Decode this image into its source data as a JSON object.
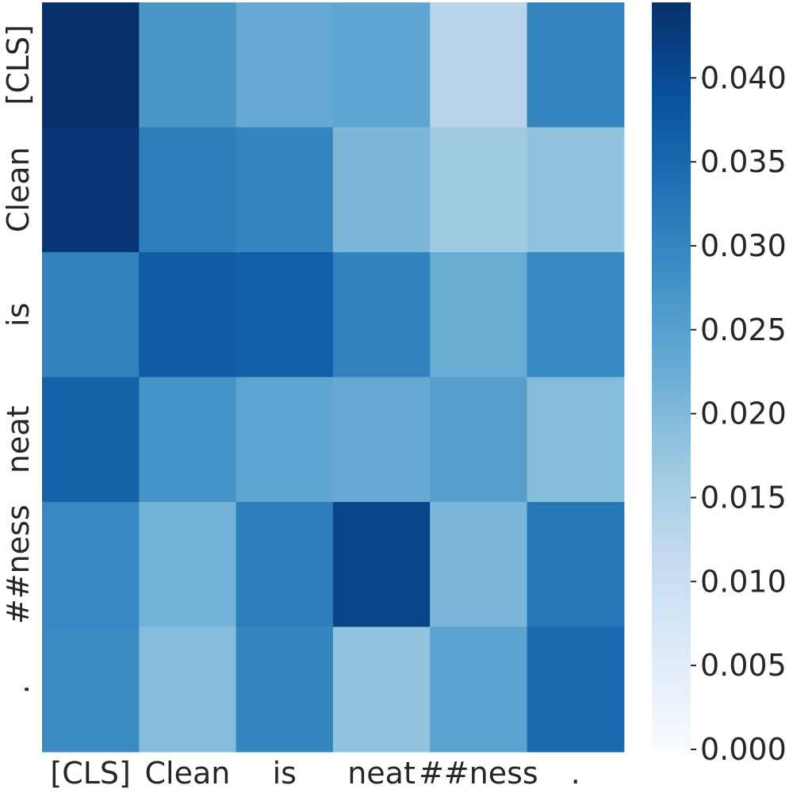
{
  "chart_data": {
    "type": "heatmap",
    "title": "",
    "xlabel": "",
    "ylabel": "",
    "x_labels": [
      "[CLS]",
      "Clean",
      "is",
      "neat",
      "##ness",
      "."
    ],
    "y_labels": [
      "[CLS]",
      "Clean",
      "is",
      "neat",
      "##ness",
      "."
    ],
    "values": [
      [
        0.0445,
        0.027,
        0.023,
        0.024,
        0.013,
        0.03
      ],
      [
        0.0435,
        0.031,
        0.03,
        0.0205,
        0.0165,
        0.018
      ],
      [
        0.0305,
        0.037,
        0.0365,
        0.0305,
        0.0225,
        0.0295
      ],
      [
        0.036,
        0.0275,
        0.024,
        0.023,
        0.025,
        0.0195
      ],
      [
        0.0295,
        0.0215,
        0.031,
        0.041,
        0.0205,
        0.0325
      ],
      [
        0.029,
        0.0195,
        0.03,
        0.018,
        0.0245,
        0.0345
      ]
    ],
    "colorscale": "Blues",
    "colorbar": {
      "range": [
        0,
        0.0445
      ],
      "ticks": [
        "0.000",
        "0.005",
        "0.010",
        "0.015",
        "0.020",
        "0.025",
        "0.030",
        "0.035",
        "0.040"
      ]
    },
    "grid": false,
    "legend": "colorbar-right"
  }
}
